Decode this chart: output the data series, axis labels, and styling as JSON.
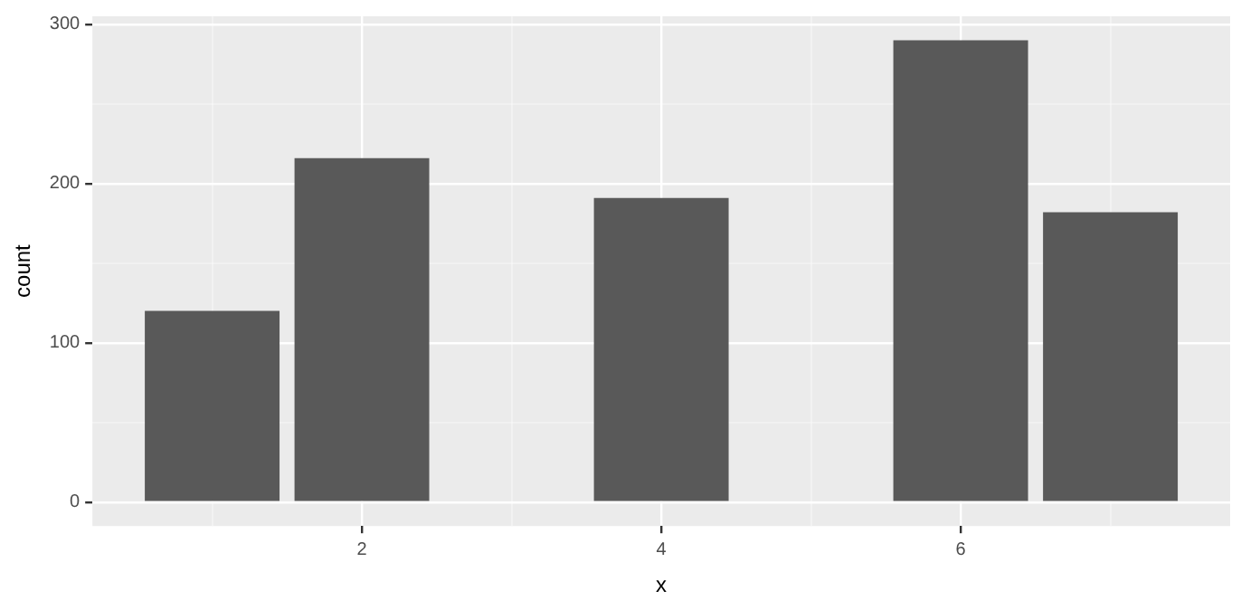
{
  "chart_data": {
    "type": "bar",
    "xlabel": "x",
    "ylabel": "count",
    "x": [
      1,
      2,
      4,
      6,
      7
    ],
    "values": [
      120,
      216,
      191,
      290,
      182
    ],
    "color": "#595959",
    "xlim": [
      0.2,
      7.8
    ],
    "xticks": [
      {
        "value": 1,
        "label": null
      },
      2,
      {
        "value": 3,
        "label": null
      },
      4,
      {
        "value": 5,
        "label": null
      },
      6,
      {
        "value": 7,
        "label": null
      }
    ],
    "ylim": [
      -15,
      305
    ],
    "yticks": [
      0,
      {
        "value": 50,
        "label": null
      },
      100,
      {
        "value": 150,
        "label": null
      },
      200,
      {
        "value": 250,
        "label": null
      },
      300
    ],
    "grid": true
  }
}
